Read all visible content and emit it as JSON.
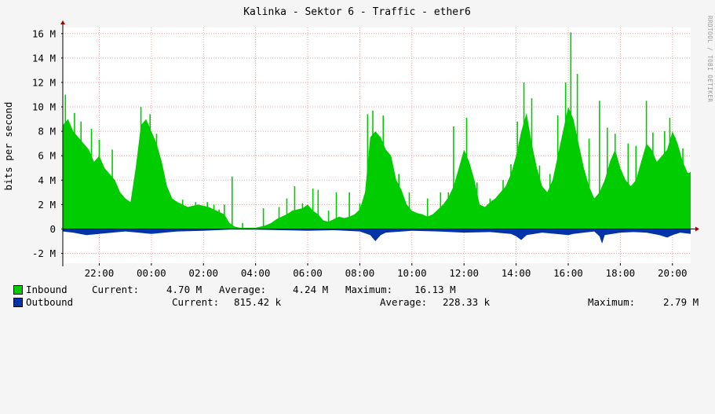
{
  "watermark": "RRDTOOL / TOBI OETIKER",
  "legend": {
    "inbound": {
      "name": "Inbound",
      "current_label": "Current:",
      "current": "4.70 M",
      "average_label": "Average:",
      "average": "4.24 M",
      "maximum_label": "Maximum:",
      "maximum": "16.13 M",
      "color": "#00cc00"
    },
    "outbound": {
      "name": "Outbound",
      "current_label": "Current:",
      "current": "815.42 k",
      "average_label": "Average:",
      "average": "228.33 k",
      "maximum_label": "Maximum:",
      "maximum": "2.79 M",
      "color": "#0033aa"
    }
  },
  "chart_data": {
    "type": "area",
    "title": "Kalinka - Sektor 6 - Traffic - ether6",
    "ylabel": "bits per second",
    "xlabel": "",
    "ylim": [
      -2.8,
      16.5
    ],
    "y_ticks": [
      {
        "value": 16,
        "label": "16 M"
      },
      {
        "value": 14,
        "label": "14 M"
      },
      {
        "value": 12,
        "label": "12 M"
      },
      {
        "value": 10,
        "label": "10 M"
      },
      {
        "value": 8,
        "label": "8 M"
      },
      {
        "value": 6,
        "label": "6 M"
      },
      {
        "value": 4,
        "label": "4 M"
      },
      {
        "value": 2,
        "label": "2 M"
      },
      {
        "value": 0,
        "label": "0"
      },
      {
        "value": -2,
        "label": "-2 M"
      }
    ],
    "x_range_hours": [
      20.6,
      44.7
    ],
    "x_ticks": [
      {
        "hour": 22,
        "label": "22:00"
      },
      {
        "hour": 24,
        "label": "00:00"
      },
      {
        "hour": 26,
        "label": "02:00"
      },
      {
        "hour": 28,
        "label": "04:00"
      },
      {
        "hour": 30,
        "label": "06:00"
      },
      {
        "hour": 32,
        "label": "08:00"
      },
      {
        "hour": 34,
        "label": "10:00"
      },
      {
        "hour": 36,
        "label": "12:00"
      },
      {
        "hour": 38,
        "label": "14:00"
      },
      {
        "hour": 40,
        "label": "16:00"
      },
      {
        "hour": 42,
        "label": "18:00"
      },
      {
        "hour": 44,
        "label": "20:00"
      }
    ],
    "grid": true,
    "series": [
      {
        "name": "Inbound",
        "color": "#00cc00",
        "points": [
          [
            20.6,
            8.5
          ],
          [
            20.8,
            9.0
          ],
          [
            21.0,
            8.0
          ],
          [
            21.2,
            7.5
          ],
          [
            21.4,
            7.0
          ],
          [
            21.6,
            6.5
          ],
          [
            21.8,
            5.5
          ],
          [
            22.0,
            6.0
          ],
          [
            22.2,
            5.0
          ],
          [
            22.4,
            4.5
          ],
          [
            22.6,
            4.0
          ],
          [
            22.8,
            3.0
          ],
          [
            23.0,
            2.5
          ],
          [
            23.2,
            2.2
          ],
          [
            23.4,
            5.0
          ],
          [
            23.6,
            8.5
          ],
          [
            23.8,
            9.0
          ],
          [
            24.0,
            8.0
          ],
          [
            24.2,
            7.0
          ],
          [
            24.4,
            5.5
          ],
          [
            24.6,
            3.5
          ],
          [
            24.8,
            2.5
          ],
          [
            25.0,
            2.2
          ],
          [
            25.2,
            2.0
          ],
          [
            25.4,
            1.8
          ],
          [
            25.6,
            1.9
          ],
          [
            25.8,
            2.0
          ],
          [
            26.0,
            1.9
          ],
          [
            26.2,
            1.8
          ],
          [
            26.4,
            1.6
          ],
          [
            26.6,
            1.4
          ],
          [
            26.8,
            1.2
          ],
          [
            27.0,
            0.5
          ],
          [
            27.2,
            0.2
          ],
          [
            27.4,
            0.1
          ],
          [
            27.6,
            0.1
          ],
          [
            27.8,
            0.1
          ],
          [
            28.0,
            0.1
          ],
          [
            28.2,
            0.2
          ],
          [
            28.4,
            0.3
          ],
          [
            28.6,
            0.5
          ],
          [
            28.8,
            0.8
          ],
          [
            29.0,
            1.0
          ],
          [
            29.2,
            1.2
          ],
          [
            29.4,
            1.5
          ],
          [
            29.6,
            1.6
          ],
          [
            29.8,
            1.7
          ],
          [
            30.0,
            2.0
          ],
          [
            30.2,
            1.5
          ],
          [
            30.4,
            1.2
          ],
          [
            30.6,
            0.7
          ],
          [
            30.8,
            0.6
          ],
          [
            31.0,
            0.8
          ],
          [
            31.2,
            1.0
          ],
          [
            31.4,
            0.9
          ],
          [
            31.6,
            1.0
          ],
          [
            31.8,
            1.2
          ],
          [
            32.0,
            1.6
          ],
          [
            32.2,
            3.0
          ],
          [
            32.4,
            7.5
          ],
          [
            32.6,
            8.0
          ],
          [
            32.8,
            7.5
          ],
          [
            33.0,
            6.5
          ],
          [
            33.2,
            6.0
          ],
          [
            33.4,
            4.0
          ],
          [
            33.6,
            3.2
          ],
          [
            33.8,
            2.0
          ],
          [
            34.0,
            1.5
          ],
          [
            34.2,
            1.3
          ],
          [
            34.4,
            1.2
          ],
          [
            34.6,
            1.0
          ],
          [
            34.8,
            1.2
          ],
          [
            35.0,
            1.6
          ],
          [
            35.2,
            2.0
          ],
          [
            35.4,
            2.6
          ],
          [
            35.6,
            3.5
          ],
          [
            35.8,
            5.0
          ],
          [
            36.0,
            6.5
          ],
          [
            36.2,
            5.5
          ],
          [
            36.4,
            4.0
          ],
          [
            36.6,
            2.0
          ],
          [
            36.8,
            1.8
          ],
          [
            37.0,
            2.2
          ],
          [
            37.2,
            2.5
          ],
          [
            37.4,
            3.0
          ],
          [
            37.6,
            3.5
          ],
          [
            37.8,
            4.5
          ],
          [
            38.0,
            6.0
          ],
          [
            38.2,
            8.0
          ],
          [
            38.4,
            9.5
          ],
          [
            38.6,
            7.0
          ],
          [
            38.8,
            5.0
          ],
          [
            39.0,
            3.5
          ],
          [
            39.2,
            3.0
          ],
          [
            39.4,
            4.0
          ],
          [
            39.6,
            6.0
          ],
          [
            39.8,
            8.0
          ],
          [
            40.0,
            10.0
          ],
          [
            40.2,
            9.0
          ],
          [
            40.4,
            7.0
          ],
          [
            40.6,
            5.0
          ],
          [
            40.8,
            3.5
          ],
          [
            41.0,
            2.5
          ],
          [
            41.2,
            3.0
          ],
          [
            41.4,
            4.0
          ],
          [
            41.6,
            5.5
          ],
          [
            41.8,
            6.5
          ],
          [
            42.0,
            5.0
          ],
          [
            42.2,
            4.0
          ],
          [
            42.4,
            3.5
          ],
          [
            42.6,
            4.0
          ],
          [
            42.8,
            5.5
          ],
          [
            43.0,
            7.0
          ],
          [
            43.2,
            6.5
          ],
          [
            43.4,
            5.5
          ],
          [
            43.6,
            6.0
          ],
          [
            43.8,
            6.5
          ],
          [
            44.0,
            8.0
          ],
          [
            44.2,
            7.0
          ],
          [
            44.4,
            5.5
          ],
          [
            44.6,
            4.5
          ],
          [
            44.7,
            4.7
          ]
        ]
      },
      {
        "name": "Outbound",
        "color": "#0033aa",
        "points": [
          [
            20.6,
            -0.2
          ],
          [
            21.0,
            -0.3
          ],
          [
            21.5,
            -0.5
          ],
          [
            22.0,
            -0.4
          ],
          [
            22.5,
            -0.3
          ],
          [
            23.0,
            -0.2
          ],
          [
            23.5,
            -0.3
          ],
          [
            24.0,
            -0.4
          ],
          [
            24.5,
            -0.3
          ],
          [
            25.0,
            -0.2
          ],
          [
            26.0,
            -0.15
          ],
          [
            27.0,
            -0.05
          ],
          [
            28.0,
            -0.05
          ],
          [
            29.0,
            -0.1
          ],
          [
            30.0,
            -0.15
          ],
          [
            31.0,
            -0.1
          ],
          [
            32.0,
            -0.2
          ],
          [
            32.4,
            -0.5
          ],
          [
            32.6,
            -1.0
          ],
          [
            32.8,
            -0.5
          ],
          [
            33.0,
            -0.3
          ],
          [
            34.0,
            -0.15
          ],
          [
            35.0,
            -0.2
          ],
          [
            36.0,
            -0.3
          ],
          [
            37.0,
            -0.25
          ],
          [
            37.8,
            -0.4
          ],
          [
            38.0,
            -0.6
          ],
          [
            38.2,
            -0.9
          ],
          [
            38.4,
            -0.5
          ],
          [
            39.0,
            -0.3
          ],
          [
            40.0,
            -0.5
          ],
          [
            40.2,
            -0.4
          ],
          [
            40.6,
            -0.3
          ],
          [
            41.0,
            -0.2
          ],
          [
            41.2,
            -0.6
          ],
          [
            41.3,
            -1.2
          ],
          [
            41.4,
            -0.5
          ],
          [
            42.0,
            -0.3
          ],
          [
            42.5,
            -0.25
          ],
          [
            43.0,
            -0.3
          ],
          [
            43.5,
            -0.5
          ],
          [
            43.8,
            -0.7
          ],
          [
            44.0,
            -0.5
          ],
          [
            44.3,
            -0.3
          ],
          [
            44.7,
            -0.4
          ]
        ]
      }
    ],
    "spikes": [
      [
        20.7,
        11.0
      ],
      [
        21.05,
        9.5
      ],
      [
        21.3,
        8.8
      ],
      [
        21.7,
        8.2
      ],
      [
        22.0,
        7.3
      ],
      [
        22.5,
        6.5
      ],
      [
        23.6,
        10.0
      ],
      [
        23.95,
        9.4
      ],
      [
        24.2,
        7.8
      ],
      [
        25.2,
        2.4
      ],
      [
        25.7,
        2.2
      ],
      [
        26.15,
        2.2
      ],
      [
        26.4,
        2.0
      ],
      [
        26.6,
        1.6
      ],
      [
        26.8,
        2.0
      ],
      [
        27.1,
        4.3
      ],
      [
        27.5,
        0.5
      ],
      [
        28.3,
        1.7
      ],
      [
        28.9,
        1.8
      ],
      [
        29.2,
        2.5
      ],
      [
        29.5,
        3.5
      ],
      [
        29.8,
        2.1
      ],
      [
        30.2,
        3.3
      ],
      [
        30.4,
        3.2
      ],
      [
        30.8,
        1.5
      ],
      [
        31.1,
        3.0
      ],
      [
        31.6,
        3.0
      ],
      [
        32.0,
        2.1
      ],
      [
        32.3,
        9.4
      ],
      [
        32.5,
        9.7
      ],
      [
        32.9,
        9.3
      ],
      [
        33.5,
        4.5
      ],
      [
        33.9,
        3.0
      ],
      [
        34.6,
        2.5
      ],
      [
        35.1,
        3.0
      ],
      [
        35.4,
        3.0
      ],
      [
        35.6,
        8.4
      ],
      [
        36.1,
        9.1
      ],
      [
        36.5,
        3.8
      ],
      [
        37.0,
        2.5
      ],
      [
        37.5,
        4.0
      ],
      [
        37.8,
        5.3
      ],
      [
        38.05,
        8.8
      ],
      [
        38.3,
        12.0
      ],
      [
        38.6,
        10.7
      ],
      [
        38.9,
        5.2
      ],
      [
        39.3,
        4.5
      ],
      [
        39.6,
        9.3
      ],
      [
        39.9,
        12.0
      ],
      [
        40.1,
        16.1
      ],
      [
        40.35,
        12.7
      ],
      [
        40.8,
        7.4
      ],
      [
        41.2,
        10.5
      ],
      [
        41.5,
        8.3
      ],
      [
        41.8,
        7.8
      ],
      [
        42.3,
        7.0
      ],
      [
        42.6,
        6.8
      ],
      [
        43.0,
        10.5
      ],
      [
        43.25,
        7.9
      ],
      [
        43.7,
        8.0
      ],
      [
        43.9,
        9.1
      ],
      [
        44.1,
        7.5
      ],
      [
        44.4,
        6.6
      ],
      [
        44.6,
        4.6
      ]
    ]
  }
}
